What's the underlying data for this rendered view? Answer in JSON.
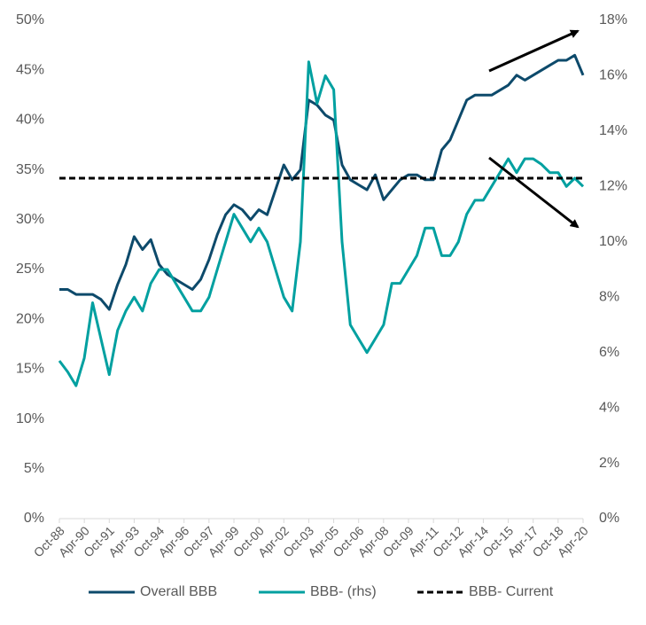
{
  "chart_data": {
    "type": "line",
    "categories": [
      "Oct-88",
      null,
      null,
      "Apr-90",
      null,
      null,
      "Oct-91",
      null,
      null,
      "Apr-93",
      null,
      null,
      "Oct-94",
      null,
      null,
      "Apr-96",
      null,
      null,
      "Oct-97",
      null,
      null,
      "Apr-99",
      null,
      null,
      "Oct-00",
      null,
      null,
      "Apr-02",
      null,
      null,
      "Oct-03",
      null,
      null,
      "Apr-05",
      null,
      null,
      "Oct-06",
      null,
      null,
      "Apr-08",
      null,
      null,
      "Oct-09",
      null,
      null,
      "Apr-11",
      null,
      null,
      "Oct-12",
      null,
      null,
      "Apr-14",
      null,
      null,
      "Oct-15",
      null,
      null,
      "Apr-17",
      null,
      null,
      "Oct-18",
      null,
      null,
      "Apr-20"
    ],
    "series": [
      {
        "name": "Overall BBB",
        "color": "#0d4a6b",
        "axis": "y",
        "values": [
          23,
          23,
          22.5,
          22.5,
          22.5,
          22,
          21,
          23.5,
          25.5,
          28.3,
          27,
          28,
          25.5,
          24.5,
          24,
          23.5,
          23,
          24,
          26,
          28.5,
          30.5,
          31.5,
          31,
          30,
          31,
          30.5,
          33,
          35.5,
          34,
          35,
          42,
          41.5,
          40.5,
          40,
          35.5,
          34,
          33.5,
          33,
          34.5,
          32,
          33,
          34,
          34.5,
          34.5,
          34,
          34,
          37,
          38,
          40,
          42,
          42.5,
          42.5,
          42.5,
          43,
          43.5,
          44.5,
          44,
          44.5,
          45,
          45.5,
          46,
          46,
          46.5,
          44.5
        ]
      },
      {
        "name": "BBB- (rhs)",
        "color": "#00a0a0",
        "axis": "y2",
        "values": [
          5.7,
          5.3,
          4.8,
          5.8,
          7.8,
          6.5,
          5.2,
          6.8,
          7.5,
          8.0,
          7.5,
          8.5,
          9.0,
          9.0,
          8.5,
          8.0,
          7.5,
          7.5,
          8.0,
          9.0,
          10.0,
          11.0,
          10.5,
          10.0,
          10.5,
          10.0,
          9.0,
          8.0,
          7.5,
          10.0,
          16.5,
          15.0,
          16.0,
          15.5,
          10.0,
          7.0,
          6.5,
          6.0,
          6.5,
          7.0,
          8.5,
          8.5,
          9.0,
          9.5,
          10.5,
          10.5,
          9.5,
          9.5,
          10.0,
          11.0,
          11.5,
          11.5,
          12.0,
          12.5,
          13.0,
          12.5,
          13.0,
          13.0,
          12.8,
          12.5,
          12.5,
          12.0,
          12.3,
          12.0
        ]
      }
    ],
    "reference_line": {
      "name": "BBB- Current",
      "value": 12.3,
      "axis": "y2",
      "color": "#000000",
      "dashed": true
    },
    "ylim": [
      0,
      50
    ],
    "yticks": [
      {
        "value": 0,
        "label": "0%"
      },
      {
        "value": 5,
        "label": "5%"
      },
      {
        "value": 10,
        "label": "10%"
      },
      {
        "value": 15,
        "label": "15%"
      },
      {
        "value": 20,
        "label": "20%"
      },
      {
        "value": 25,
        "label": "25%"
      },
      {
        "value": 30,
        "label": "30%"
      },
      {
        "value": 35,
        "label": "35%"
      },
      {
        "value": 40,
        "label": "40%"
      },
      {
        "value": 45,
        "label": "45%"
      },
      {
        "value": 50,
        "label": "50%"
      }
    ],
    "y2lim": [
      0,
      18
    ],
    "y2ticks": [
      {
        "value": 0,
        "label": "0%"
      },
      {
        "value": 2,
        "label": "2%"
      },
      {
        "value": 4,
        "label": "4%"
      },
      {
        "value": 6,
        "label": "6%"
      },
      {
        "value": 8,
        "label": "8%"
      },
      {
        "value": 10,
        "label": "10%"
      },
      {
        "value": 12,
        "label": "12%"
      },
      {
        "value": 14,
        "label": "14%"
      },
      {
        "value": 16,
        "label": "16%"
      },
      {
        "value": 18,
        "label": "18%"
      }
    ],
    "grid": false,
    "legend": "bottom"
  }
}
